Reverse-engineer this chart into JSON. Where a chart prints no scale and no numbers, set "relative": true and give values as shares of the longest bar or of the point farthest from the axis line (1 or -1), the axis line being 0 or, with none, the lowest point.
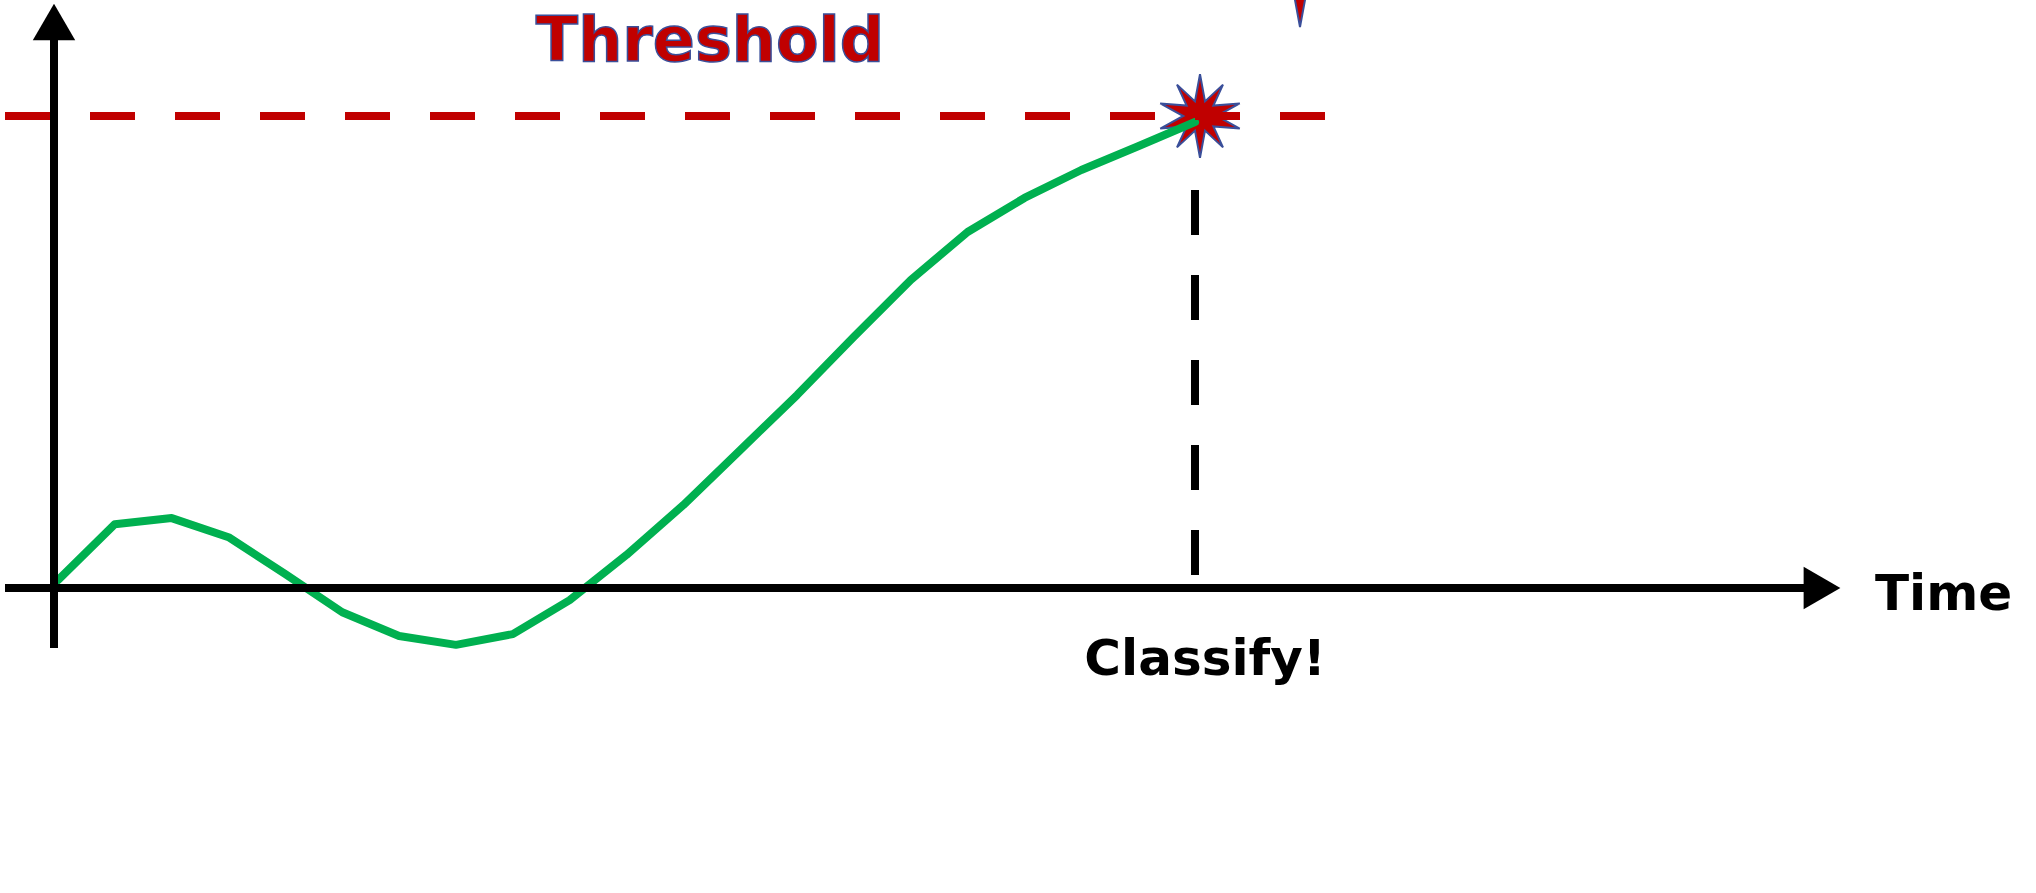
{
  "chart_data": {
    "type": "line",
    "relative": true,
    "categories": [
      null,
      null,
      null,
      null,
      null,
      null,
      null,
      null,
      null,
      null,
      null,
      null,
      null,
      null,
      null,
      null,
      null,
      null,
      null,
      null,
      null
    ],
    "series": [
      {
        "color": "#00b050",
        "values": [
          0.017,
          0.137,
          0.15,
          0.109,
          0.03,
          -0.052,
          -0.103,
          -0.122,
          -0.099,
          -0.026,
          0.071,
          0.178,
          0.296,
          0.414,
          0.539,
          0.661,
          0.764,
          0.837,
          0.897,
          0.948,
          1
        ]
      }
    ],
    "ref_lines": [
      {
        "axis": "y",
        "value": 1.013,
        "label": "Threshold",
        "color": "#c00000",
        "line_style": "dashed"
      }
    ],
    "annotations": [
      "Time",
      "Classify!"
    ]
  }
}
